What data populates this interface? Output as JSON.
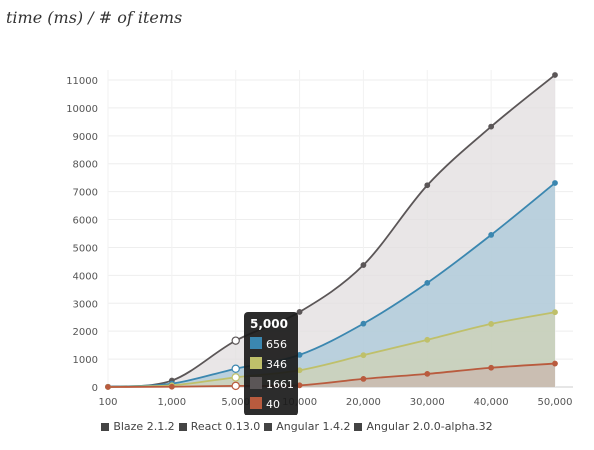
{
  "title": "time (ms) / # of items",
  "chart_data": {
    "type": "area",
    "x_categories": [
      "100",
      "1,000",
      "5,000",
      "10,000",
      "20,000",
      "30,000",
      "40,000",
      "50,000"
    ],
    "y_ticks": [
      "0",
      "1000",
      "2000",
      "3000",
      "4000",
      "5000",
      "6000",
      "7000",
      "8000",
      "9000",
      "10000",
      "11000"
    ],
    "ylim": [
      0,
      11000
    ],
    "grid": true,
    "legend_position": "bottom",
    "series": [
      {
        "name": "Blaze 2.1.2",
        "color": "#3b87b0",
        "fill": "#a9c8da",
        "values": [
          5,
          120,
          656,
          1150,
          2270,
          3730,
          5450,
          7310
        ]
      },
      {
        "name": "React 0.13.0",
        "color": "#bfc06a",
        "fill": "#cfd3b4",
        "values": [
          3,
          60,
          346,
          600,
          1140,
          1690,
          2260,
          2680
        ]
      },
      {
        "name": "Angular 1.4.2",
        "color": "#5b5657",
        "fill": "#e1dedf",
        "values": [
          10,
          230,
          1661,
          2690,
          4370,
          7230,
          9330,
          11180
        ]
      },
      {
        "name": "Angular 2.0.0-alpha.32",
        "color": "#b95b3e",
        "fill": "#c9b7ad",
        "values": [
          1,
          10,
          40,
          60,
          290,
          470,
          690,
          840
        ]
      }
    ],
    "tooltip": {
      "header": "5,000",
      "rows": [
        {
          "color": "#3b87b0",
          "value": "656"
        },
        {
          "color": "#bfc06a",
          "value": "346"
        },
        {
          "color": "#5b5657",
          "value": "1661"
        },
        {
          "color": "#b95b3e",
          "value": "40"
        }
      ]
    }
  },
  "legend": [
    "Blaze 2.1.2",
    "React 0.13.0",
    "Angular 1.4.2",
    "Angular 2.0.0-alpha.32"
  ]
}
